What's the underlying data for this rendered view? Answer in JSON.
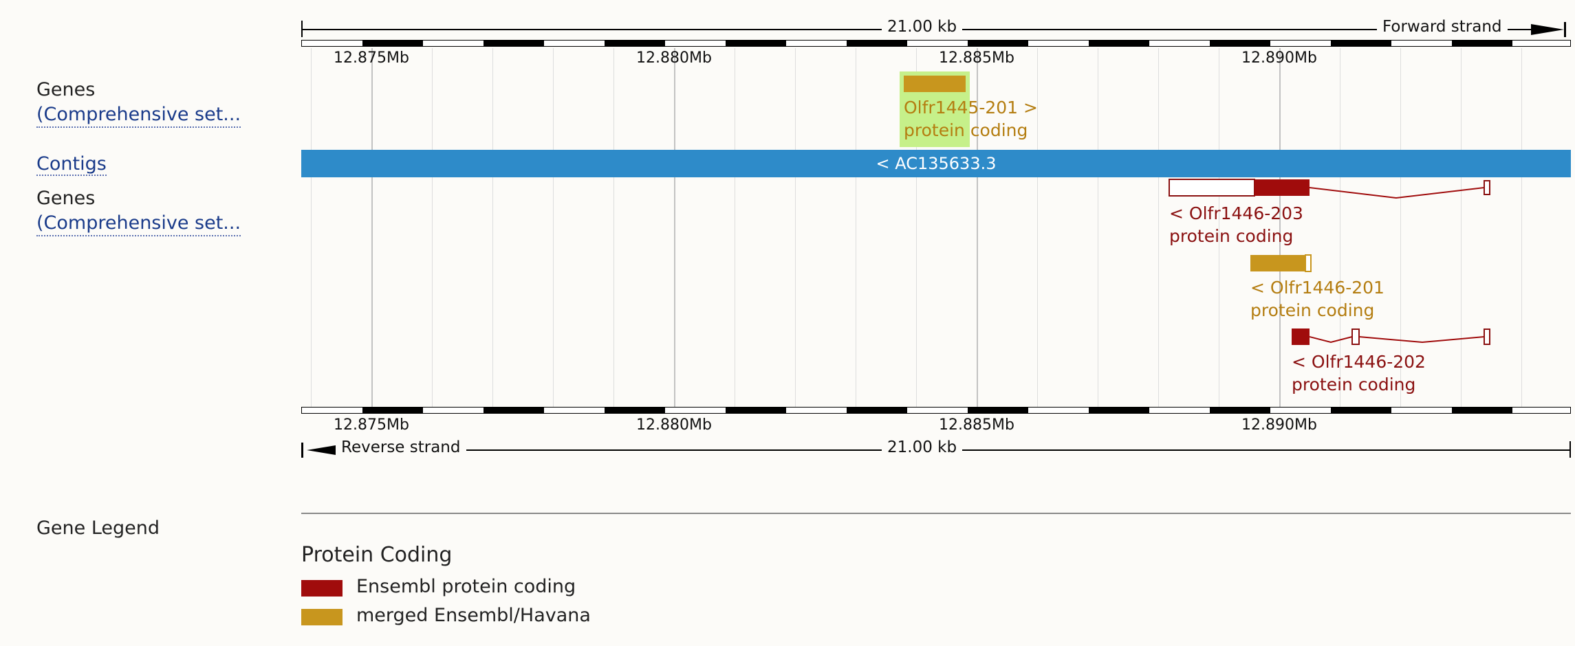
{
  "scale": {
    "length_label": "21.00 kb",
    "forward_strand": "Forward strand",
    "reverse_strand": "Reverse strand"
  },
  "ruler_ticks": [
    "12.875Mb",
    "12.880Mb",
    "12.885Mb",
    "12.890Mb"
  ],
  "tracks": {
    "genes_top": {
      "title": "Genes",
      "subtitle": "(Comprehensive set..."
    },
    "contigs": {
      "title": "Contigs"
    },
    "genes_bottom": {
      "title": "Genes",
      "subtitle": "(Comprehensive set..."
    }
  },
  "contig": {
    "label": "< AC135633.3",
    "color": "#2e8bc9"
  },
  "genes": {
    "olfr1445_201": {
      "name": "Olfr1445-201 >",
      "biotype": "protein coding",
      "color": "#c8961e",
      "highlight": "#c6f08a"
    },
    "olfr1446_203": {
      "name": "< Olfr1446-203",
      "biotype": "protein coding",
      "color": "#a00c0c"
    },
    "olfr1446_201": {
      "name": "< Olfr1446-201",
      "biotype": "protein coding",
      "color": "#c8961e"
    },
    "olfr1446_202": {
      "name": "< Olfr1446-202",
      "biotype": "protein coding",
      "color": "#a00c0c"
    }
  },
  "legend": {
    "title": "Gene Legend",
    "section": "Protein Coding",
    "items": [
      {
        "label": "Ensembl protein coding",
        "color": "#a00c0c"
      },
      {
        "label": "merged Ensembl/Havana",
        "color": "#c8961e"
      }
    ]
  }
}
